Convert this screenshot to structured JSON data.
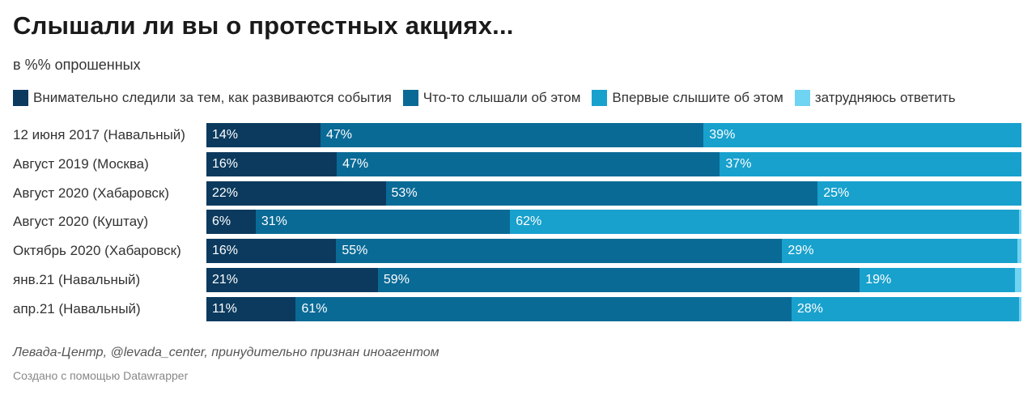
{
  "title": "Слышали ли вы о протестных акциях...",
  "subtitle": "в %% опрошенных",
  "source": "Левада-Центр, @levada_center, принудительно признан иноагентом",
  "credit": "Создано с помощью Datawrapper",
  "colors": [
    "#0b3a5e",
    "#0a6a96",
    "#18a1cd",
    "#6fd3f2"
  ],
  "chart_data": {
    "type": "bar",
    "orientation": "horizontal-stacked-100",
    "title": "Слышали ли вы о протестных акциях...",
    "subtitle": "в %% опрошенных",
    "categories": [
      "12 июня 2017 (Навальный)",
      "Август 2019 (Москва)",
      "Август 2020 (Хабаровск)",
      "Август 2020 (Куштау)",
      "Октябрь 2020 (Хабаровск)",
      "янв.21 (Навальный)",
      "апр.21 (Навальный)"
    ],
    "series": [
      {
        "name": "Внимательно следили за тем, как развиваются события",
        "values": [
          14,
          16,
          22,
          6,
          16,
          21,
          11
        ]
      },
      {
        "name": "Что-то слышали об этом",
        "values": [
          47,
          47,
          53,
          31,
          55,
          59,
          61
        ]
      },
      {
        "name": "Впервые слышите об этом",
        "values": [
          39,
          37,
          25,
          62,
          29,
          19,
          28
        ]
      },
      {
        "name": "затрудняюсь ответить",
        "values": [
          0,
          0,
          0,
          0.3,
          0.5,
          0.8,
          0.3
        ]
      }
    ],
    "xlim": [
      0,
      100
    ],
    "legend": "top",
    "grid": false
  }
}
